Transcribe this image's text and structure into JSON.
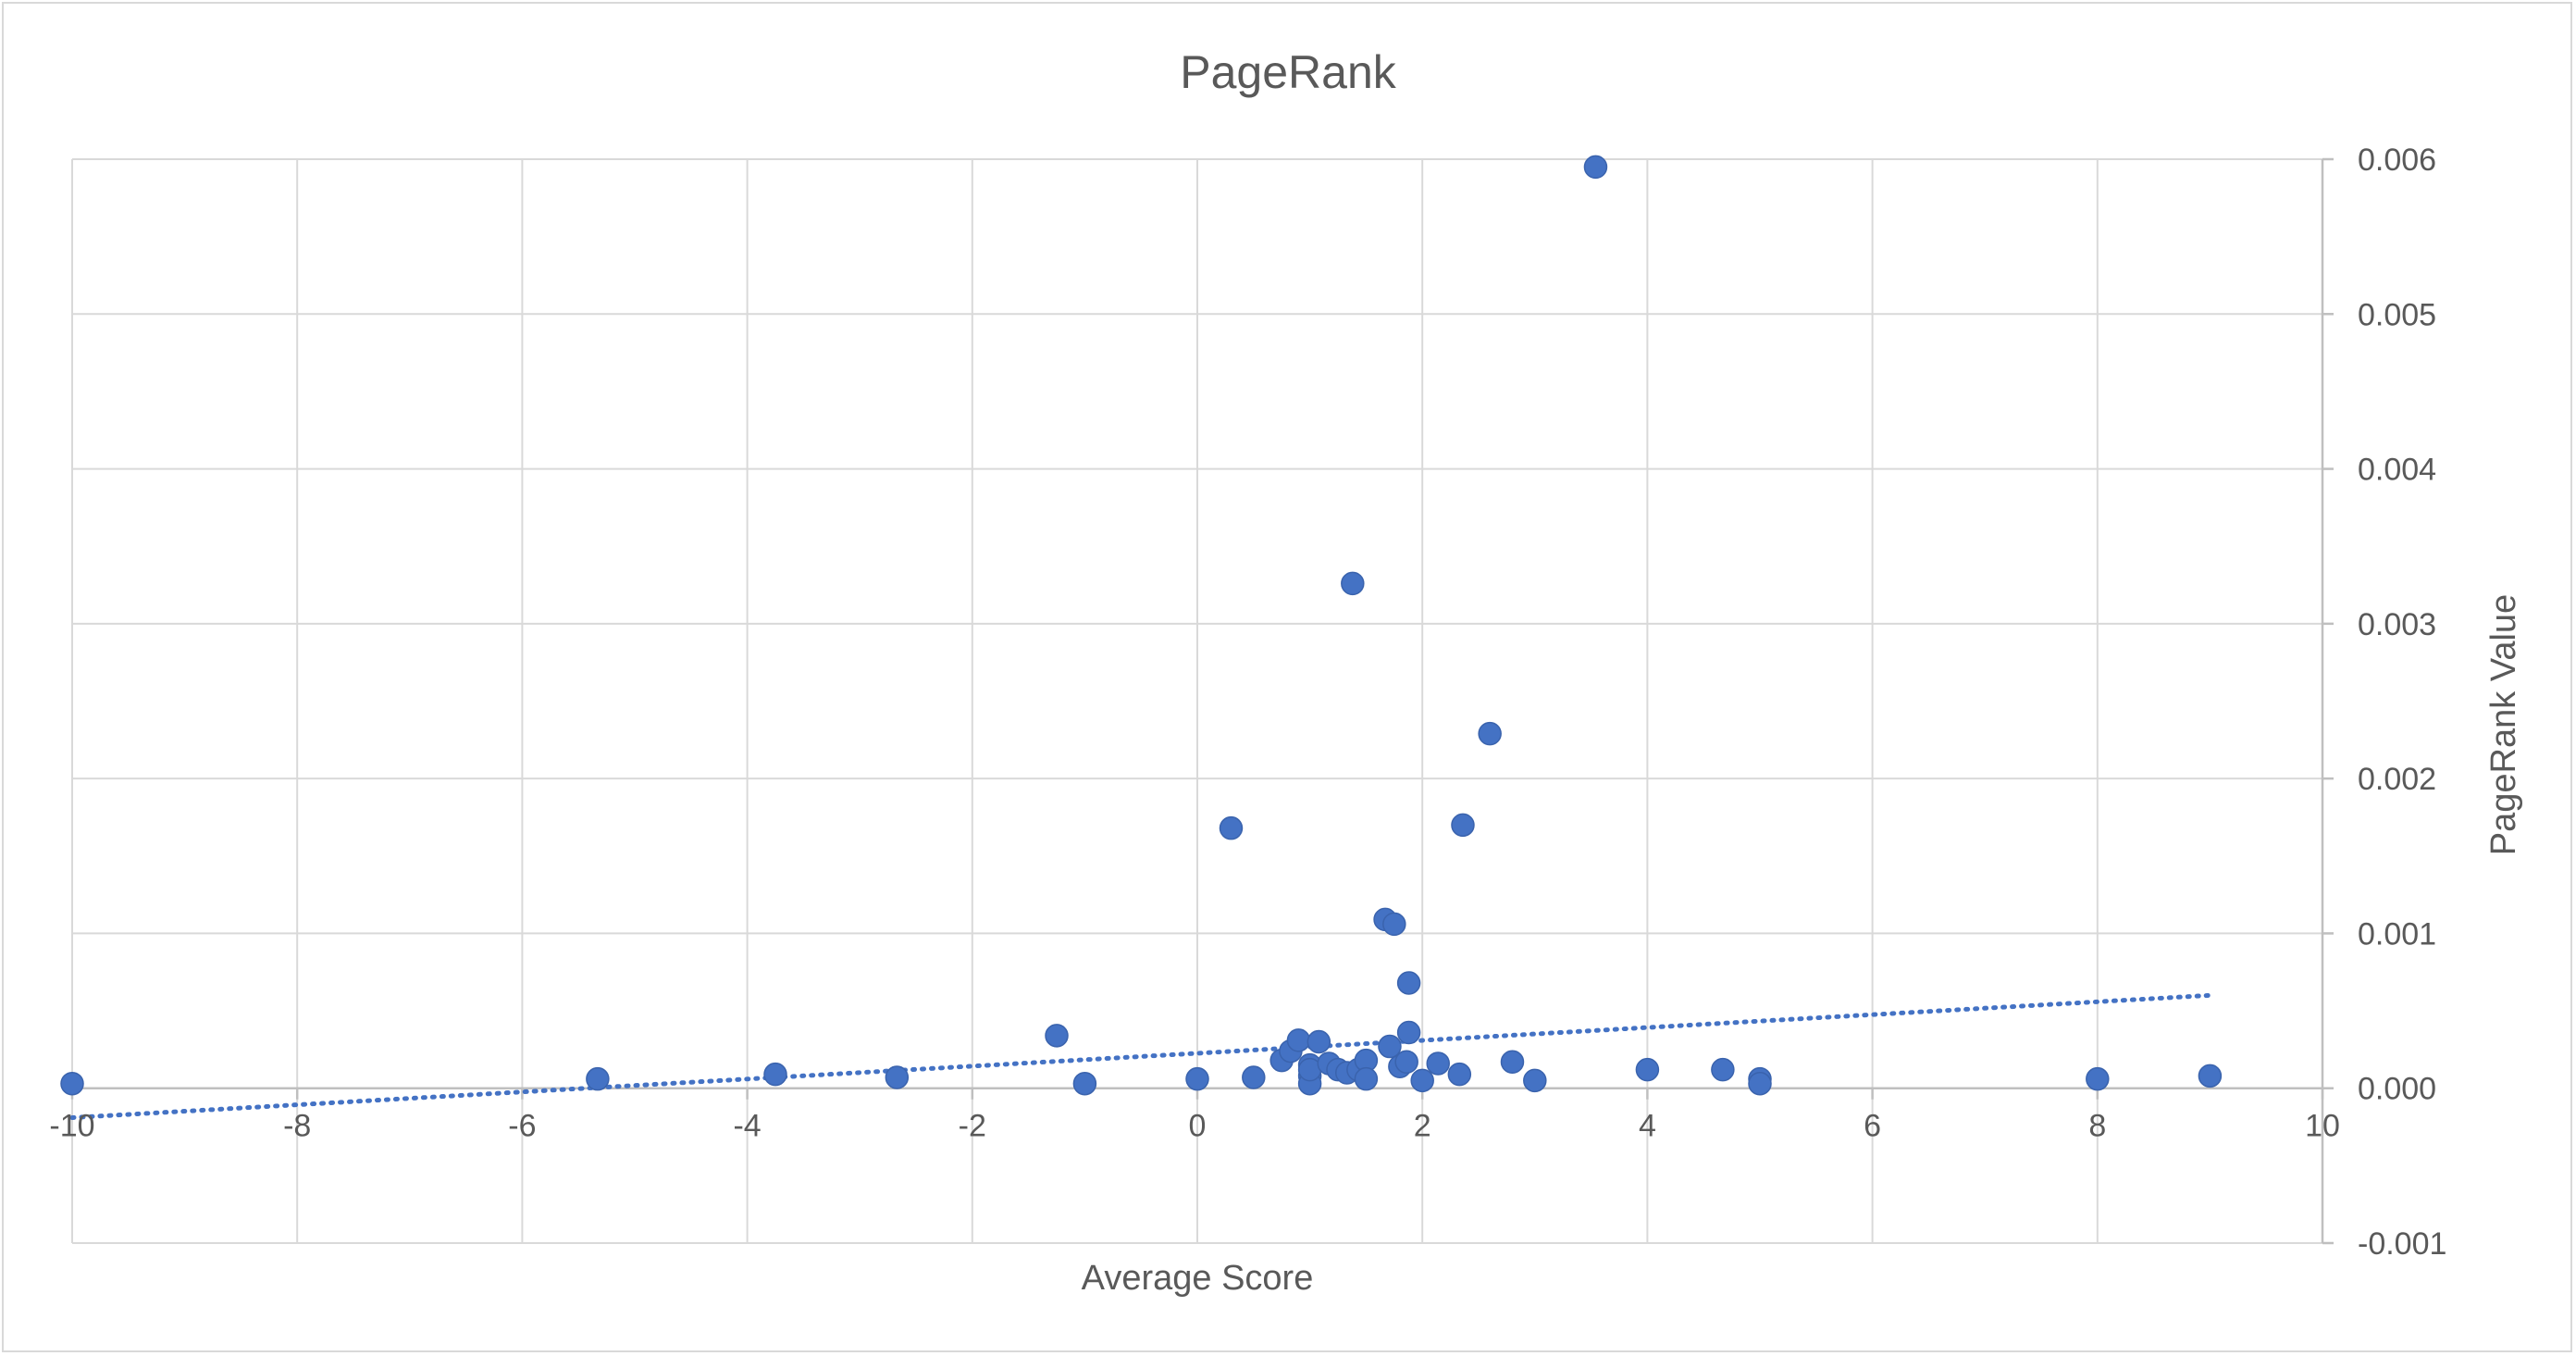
{
  "chart_data": {
    "type": "scatter",
    "title": "PageRank",
    "xlabel": "Average Score",
    "ylabel": "PageRank Value",
    "xlim": [
      -10,
      10
    ],
    "ylim": [
      -0.001,
      0.006
    ],
    "x_ticks": [
      "-10",
      "-8",
      "-6",
      "-4",
      "-2",
      "0",
      "2",
      "4",
      "6",
      "8",
      "10"
    ],
    "y_ticks": [
      "0.006",
      "0.005",
      "0.004",
      "0.003",
      "0.002",
      "0.001",
      "0.000",
      "-0.001"
    ],
    "y_axis_position": "right",
    "grid": true,
    "legend": "none",
    "colors": {
      "marker": "#4472c4",
      "trendline": "#4472c4",
      "grid": "#d9d9d9"
    },
    "series": [
      {
        "marker": "circle",
        "points": [
          [
            -10,
            3e-05
          ],
          [
            -5.33,
            6e-05
          ],
          [
            -3.75,
            9e-05
          ],
          [
            -2.67,
            7e-05
          ],
          [
            -1.25,
            0.00034
          ],
          [
            -1,
            3e-05
          ],
          [
            0,
            6e-05
          ],
          [
            0.3,
            0.00168
          ],
          [
            0.5,
            7e-05
          ],
          [
            0.75,
            0.00018
          ],
          [
            0.83,
            0.00024
          ],
          [
            0.9,
            0.00031
          ],
          [
            1,
            0.00015
          ],
          [
            1,
            8e-05
          ],
          [
            1,
            3e-05
          ],
          [
            1,
            0.00012
          ],
          [
            1.08,
            0.0003
          ],
          [
            1.17,
            0.00016
          ],
          [
            1.25,
            0.00012
          ],
          [
            1.33,
            0.0001
          ],
          [
            1.38,
            0.00326
          ],
          [
            1.43,
            0.00012
          ],
          [
            1.5,
            0.00018
          ],
          [
            1.5,
            6e-05
          ],
          [
            1.67,
            0.00109
          ],
          [
            1.71,
            0.00027
          ],
          [
            1.75,
            0.00106
          ],
          [
            1.8,
            0.00014
          ],
          [
            1.86,
            0.00017
          ],
          [
            1.88,
            0.00068
          ],
          [
            1.88,
            0.00036
          ],
          [
            2,
            5e-05
          ],
          [
            2.14,
            0.00016
          ],
          [
            2.33,
            9e-05
          ],
          [
            2.36,
            0.0017
          ],
          [
            2.6,
            0.00229
          ],
          [
            2.8,
            0.00017
          ],
          [
            3,
            5e-05
          ],
          [
            3.54,
            0.00595
          ],
          [
            4,
            0.00012
          ],
          [
            4.67,
            0.00012
          ],
          [
            5,
            6e-05
          ],
          [
            5,
            3e-05
          ],
          [
            8,
            6e-05
          ],
          [
            9,
            8e-05
          ]
        ]
      }
    ],
    "trendline": {
      "type": "linear",
      "style": "dotted",
      "x": [
        -10,
        9
      ],
      "y": [
        -0.00019,
        0.0006
      ]
    }
  }
}
